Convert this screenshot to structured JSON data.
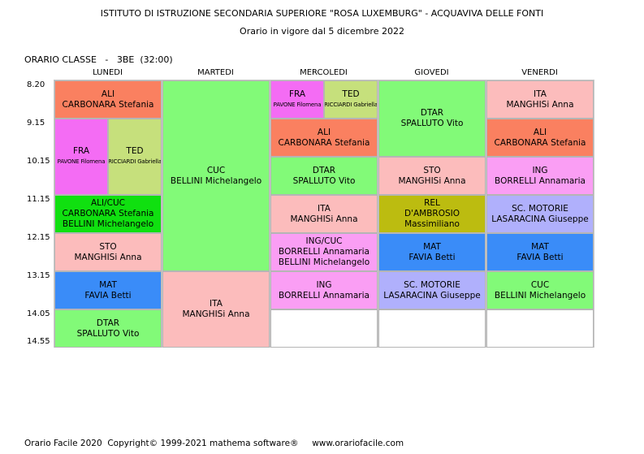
{
  "header": {
    "school": "ISTITUTO DI ISTRUZIONE SECONDARIA SUPERIORE \"ROSA LUXEMBURG\" - ACQUAVIVA DELLE FONTI",
    "validity": "Orario in vigore dal 5 dicembre 2022"
  },
  "class_label": "ORARIO CLASSE   -   3BE  (32:00)",
  "days": [
    "LUNEDI",
    "MARTEDI",
    "MERCOLEDI",
    "GIOVEDI",
    "VENERDI"
  ],
  "times": [
    "8.20",
    "9.15",
    "10.15",
    "11.15",
    "12.15",
    "13.15",
    "14.05",
    "14.55"
  ],
  "colors": {
    "ali": "#fa8060",
    "cuc": "#82fa78",
    "fra": "#f46cf4",
    "ted": "#c6e07c",
    "ita_sto": "#fcbcbc",
    "ing": "#fa9ef4",
    "ali_cuc": "#10e010",
    "mat": "#3a8cf8",
    "rel": "#bcbc10",
    "sc_motorie": "#b0b0fc"
  },
  "cells": {
    "mon": [
      {
        "l1": "ALI",
        "l2": "CARBONARA Stefania"
      },
      {
        "l1": "FRA",
        "l2": "PAVONE Filomena"
      },
      {
        "l1": "TED",
        "l2": "RICCIARDI Gabriella"
      },
      {
        "l1": "ALI/CUC",
        "l2": "CARBONARA Stefania",
        "l3": "BELLINI Michelangelo"
      },
      {
        "l1": "STO",
        "l2": "MANGHISi Anna"
      },
      {
        "l1": "MAT",
        "l2": "FAVIA Betti"
      },
      {
        "l1": "DTAR",
        "l2": "SPALLUTO Vito"
      }
    ],
    "tue": [
      {
        "l1": "CUC",
        "l2": "BELLINI Michelangelo"
      },
      {
        "l1": "ITA",
        "l2": "MANGHISi Anna"
      }
    ],
    "wed": [
      {
        "l1": "FRA",
        "l2": "PAVONE Filomena"
      },
      {
        "l1": "TED",
        "l2": "RICCIARDI Gabriella"
      },
      {
        "l1": "ALI",
        "l2": "CARBONARA Stefania"
      },
      {
        "l1": "DTAR",
        "l2": "SPALLUTO Vito"
      },
      {
        "l1": "ITA",
        "l2": "MANGHISi Anna"
      },
      {
        "l1": "ING/CUC",
        "l2": "BORRELLI Annamaria",
        "l3": "BELLINI Michelangelo"
      },
      {
        "l1": "ING",
        "l2": "BORRELLI Annamaria"
      }
    ],
    "thu": [
      {
        "l1": "DTAR",
        "l2": "SPALLUTO Vito"
      },
      {
        "l1": "STO",
        "l2": "MANGHISi Anna"
      },
      {
        "l1": "REL",
        "l2": "D'AMBROSIO Massimiliano"
      },
      {
        "l1": "MAT",
        "l2": "FAVIA Betti"
      },
      {
        "l1": "SC. MOTORIE",
        "l2": "LASARACINA Giuseppe"
      }
    ],
    "fri": [
      {
        "l1": "ITA",
        "l2": "MANGHISi Anna"
      },
      {
        "l1": "ALI",
        "l2": "CARBONARA Stefania"
      },
      {
        "l1": "ING",
        "l2": "BORRELLI Annamaria"
      },
      {
        "l1": "SC. MOTORIE",
        "l2": "LASARACINA Giuseppe"
      },
      {
        "l1": "MAT",
        "l2": "FAVIA Betti"
      },
      {
        "l1": "CUC",
        "l2": "BELLINI Michelangelo"
      }
    ]
  },
  "footer": "Orario Facile 2020  Copyright© 1999-2021 mathema software®     www.orariofacile.com"
}
